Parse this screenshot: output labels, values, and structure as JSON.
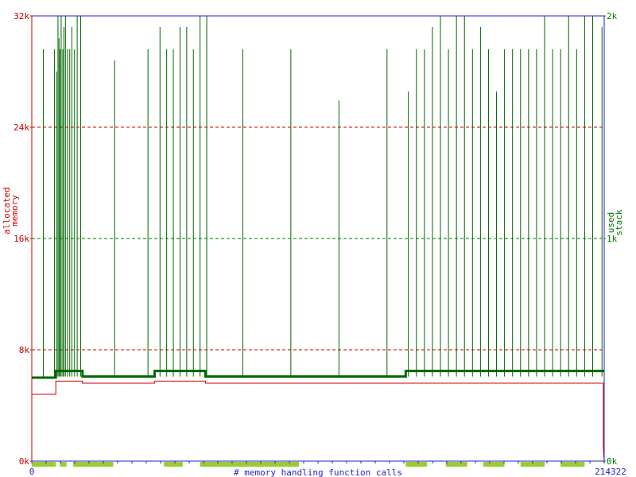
{
  "chart_data": {
    "type": "line",
    "title": "",
    "xlabel": "# memory handling function calls",
    "x_range": [
      0,
      214322
    ],
    "x_ticks": [
      "0",
      "214322"
    ],
    "y_left": {
      "label_lines": [
        "allocated",
        "memory"
      ],
      "range": [
        0,
        32000
      ],
      "ticks": [
        {
          "value": 0,
          "label": "0k"
        },
        {
          "value": 8000,
          "label": "8k"
        },
        {
          "value": 16000,
          "label": "16k"
        },
        {
          "value": 24000,
          "label": "24k"
        },
        {
          "value": 32000,
          "label": "32k"
        }
      ]
    },
    "y_right": {
      "label_lines": [
        "used",
        "stack"
      ],
      "range": [
        0,
        2000
      ],
      "ticks": [
        {
          "value": 0,
          "label": "0k"
        },
        {
          "value": 1000,
          "label": "1k"
        },
        {
          "value": 2000,
          "label": "2k"
        }
      ]
    },
    "gridlines": [
      {
        "value": 8000,
        "color": "#cc0000"
      },
      {
        "value": 16000,
        "color": "#007700"
      },
      {
        "value": 24000,
        "color": "#cc0000"
      }
    ],
    "series": [
      {
        "name": "allocated memory",
        "axis": "left",
        "color": "#cc0000",
        "points": [
          [
            0,
            0
          ],
          [
            0,
            4800
          ],
          [
            9000,
            4800
          ],
          [
            9000,
            5750
          ],
          [
            19000,
            5750
          ],
          [
            19000,
            5600
          ],
          [
            46000,
            5600
          ],
          [
            46000,
            5750
          ],
          [
            65000,
            5750
          ],
          [
            65000,
            5600
          ],
          [
            214000,
            5600
          ],
          [
            214000,
            1000
          ],
          [
            214322,
            0
          ]
        ]
      },
      {
        "name": "used stack",
        "axis": "right",
        "color": "#006600",
        "baseline": [
          [
            0,
            375
          ],
          [
            9000,
            375
          ],
          [
            9000,
            405
          ],
          [
            19000,
            405
          ],
          [
            19000,
            380
          ],
          [
            46000,
            380
          ],
          [
            46000,
            405
          ],
          [
            65000,
            405
          ],
          [
            65000,
            380
          ],
          [
            140000,
            380
          ],
          [
            140000,
            405
          ],
          [
            214322,
            405
          ]
        ],
        "spikes": [
          {
            "x": 4300,
            "peak": 1850
          },
          {
            "x": 8500,
            "peak": 1850
          },
          {
            "x": 9300,
            "peak": 1750
          },
          {
            "x": 9800,
            "peak": 2000
          },
          {
            "x": 10200,
            "peak": 1900
          },
          {
            "x": 10600,
            "peak": 1850
          },
          {
            "x": 11000,
            "peak": 2000
          },
          {
            "x": 11600,
            "peak": 1850
          },
          {
            "x": 12000,
            "peak": 1950
          },
          {
            "x": 12600,
            "peak": 2000
          },
          {
            "x": 13400,
            "peak": 1850
          },
          {
            "x": 14200,
            "peak": 1850
          },
          {
            "x": 15000,
            "peak": 1950
          },
          {
            "x": 16000,
            "peak": 1850
          },
          {
            "x": 17000,
            "peak": 2000
          },
          {
            "x": 18300,
            "peak": 2000
          },
          {
            "x": 31000,
            "peak": 1800
          },
          {
            "x": 43500,
            "peak": 1850
          },
          {
            "x": 48000,
            "peak": 1950
          },
          {
            "x": 50500,
            "peak": 1850
          },
          {
            "x": 53000,
            "peak": 1850
          },
          {
            "x": 55500,
            "peak": 1950
          },
          {
            "x": 58000,
            "peak": 1950
          },
          {
            "x": 60500,
            "peak": 1850
          },
          {
            "x": 63000,
            "peak": 2000
          },
          {
            "x": 65500,
            "peak": 2000
          },
          {
            "x": 79000,
            "peak": 1850
          },
          {
            "x": 97000,
            "peak": 1850
          },
          {
            "x": 115000,
            "peak": 1620
          },
          {
            "x": 133000,
            "peak": 1850
          },
          {
            "x": 141000,
            "peak": 1660
          },
          {
            "x": 144000,
            "peak": 1850
          },
          {
            "x": 147000,
            "peak": 1850
          },
          {
            "x": 150000,
            "peak": 1950
          },
          {
            "x": 153000,
            "peak": 2000
          },
          {
            "x": 156000,
            "peak": 1850
          },
          {
            "x": 159000,
            "peak": 2000
          },
          {
            "x": 162000,
            "peak": 2000
          },
          {
            "x": 165000,
            "peak": 1850
          },
          {
            "x": 168000,
            "peak": 1950
          },
          {
            "x": 171000,
            "peak": 1850
          },
          {
            "x": 174000,
            "peak": 1660
          },
          {
            "x": 177000,
            "peak": 1850
          },
          {
            "x": 180000,
            "peak": 1850
          },
          {
            "x": 183000,
            "peak": 1850
          },
          {
            "x": 186000,
            "peak": 1850
          },
          {
            "x": 189000,
            "peak": 1850
          },
          {
            "x": 192000,
            "peak": 2000
          },
          {
            "x": 195000,
            "peak": 1850
          },
          {
            "x": 198000,
            "peak": 1850
          },
          {
            "x": 201000,
            "peak": 2000
          },
          {
            "x": 204000,
            "peak": 1850
          },
          {
            "x": 207000,
            "peak": 2000
          },
          {
            "x": 210000,
            "peak": 2000
          },
          {
            "x": 213500,
            "peak": 1950
          }
        ]
      }
    ],
    "activity_bars": {
      "color": "#99cc33",
      "segments": [
        [
          0,
          9000
        ],
        [
          10500,
          13000
        ],
        [
          15500,
          30500
        ],
        [
          49500,
          56500
        ],
        [
          63000,
          100000
        ],
        [
          140000,
          148000
        ],
        [
          155000,
          163000
        ],
        [
          169000,
          177000
        ],
        [
          183000,
          192000
        ],
        [
          198000,
          207000
        ]
      ]
    },
    "grid": true,
    "legend": "none"
  }
}
